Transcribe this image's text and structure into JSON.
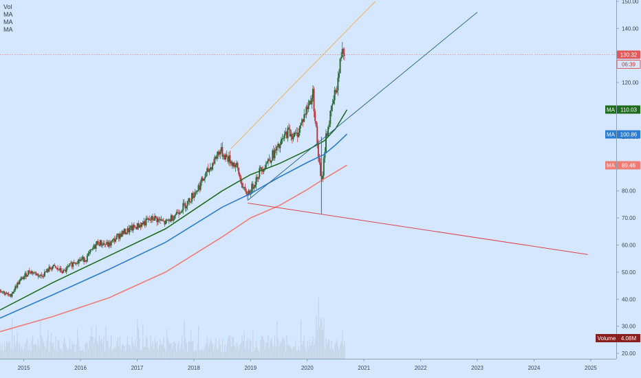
{
  "legend": {
    "vol": "Vol",
    "ma1": "MA",
    "ma2": "MA",
    "ma3": "MA"
  },
  "colors": {
    "background": "#d4e7ff",
    "up_candle": "#2d6b3a",
    "down_candle": "#b83a3a",
    "ma_green": "#1e6b1e",
    "ma_blue": "#2a7bd1",
    "ma_red": "#f07b74",
    "trend_orange": "#f0b15a",
    "trend_blue": "#2e6a8c",
    "trend_red": "#e0434a",
    "price_line": "#e88080",
    "volume_bar": "#c5d3e3"
  },
  "chart_data": {
    "type": "candlestick",
    "x_ticks": [
      "2015",
      "2016",
      "2017",
      "2018",
      "2019",
      "2020",
      "2021",
      "2022",
      "2023",
      "2024",
      "2025"
    ],
    "y_ticks": [
      "150.00",
      "140.00",
      "130.00",
      "120.00",
      "110.00",
      "100.00",
      "90.00",
      "80.00",
      "70.00",
      "60.00",
      "50.00",
      "40.00",
      "30.00",
      "20.00"
    ],
    "ylim": [
      18,
      150.5
    ],
    "xlim": [
      2014.58,
      2025.45
    ],
    "last_price": 130.32,
    "countdown": "06:39",
    "series_price": [
      [
        2014.58,
        43.5
      ],
      [
        2014.75,
        41.0
      ],
      [
        2014.9,
        46.0
      ],
      [
        2015.1,
        50.5
      ],
      [
        2015.3,
        48.5
      ],
      [
        2015.5,
        52.0
      ],
      [
        2015.7,
        50.0
      ],
      [
        2015.9,
        54.0
      ],
      [
        2016.1,
        55.0
      ],
      [
        2016.3,
        61.0
      ],
      [
        2016.5,
        60.0
      ],
      [
        2016.7,
        64.0
      ],
      [
        2016.9,
        66.0
      ],
      [
        2017.1,
        68.0
      ],
      [
        2017.3,
        70.0
      ],
      [
        2017.5,
        68.0
      ],
      [
        2017.7,
        72.0
      ],
      [
        2017.9,
        76.0
      ],
      [
        2018.1,
        82.0
      ],
      [
        2018.3,
        89.0
      ],
      [
        2018.45,
        95.0
      ],
      [
        2018.6,
        92.0
      ],
      [
        2018.75,
        89.0
      ],
      [
        2018.9,
        79.0
      ],
      [
        2019.0,
        80.0
      ],
      [
        2019.15,
        87.0
      ],
      [
        2019.3,
        91.0
      ],
      [
        2019.5,
        96.0
      ],
      [
        2019.65,
        102.0
      ],
      [
        2019.8,
        100.0
      ],
      [
        2019.95,
        108.0
      ],
      [
        2020.1,
        116.0
      ],
      [
        2020.2,
        92.0
      ],
      [
        2020.25,
        82.0
      ],
      [
        2020.33,
        100.0
      ],
      [
        2020.45,
        112.0
      ],
      [
        2020.55,
        122.0
      ],
      [
        2020.62,
        134.0
      ],
      [
        2020.67,
        130.32
      ]
    ],
    "ma": [
      {
        "name": "MA",
        "label": "110.03",
        "points": [
          [
            2014.58,
            36
          ],
          [
            2015.5,
            46
          ],
          [
            2016.5,
            56
          ],
          [
            2017.5,
            66
          ],
          [
            2018.5,
            80
          ],
          [
            2019.0,
            86
          ],
          [
            2019.5,
            90
          ],
          [
            2020.0,
            95
          ],
          [
            2020.3,
            98.5
          ],
          [
            2020.5,
            103
          ],
          [
            2020.7,
            110
          ]
        ]
      },
      {
        "name": "MA",
        "label": "100.86",
        "points": [
          [
            2014.58,
            33
          ],
          [
            2015.5,
            41.5
          ],
          [
            2016.5,
            51
          ],
          [
            2017.5,
            61
          ],
          [
            2018.5,
            74
          ],
          [
            2019.0,
            79
          ],
          [
            2019.5,
            85
          ],
          [
            2020.0,
            90.5
          ],
          [
            2020.3,
            93.5
          ],
          [
            2020.5,
            97
          ],
          [
            2020.7,
            101
          ]
        ]
      },
      {
        "name": "MA",
        "label": "89.46",
        "points": [
          [
            2014.58,
            28
          ],
          [
            2015.5,
            33.5
          ],
          [
            2016.5,
            40.5
          ],
          [
            2017.5,
            50
          ],
          [
            2018.5,
            63
          ],
          [
            2019.0,
            70
          ],
          [
            2019.5,
            74.5
          ],
          [
            2020.0,
            80.5
          ],
          [
            2020.3,
            84.5
          ],
          [
            2020.5,
            87
          ],
          [
            2020.7,
            89.5
          ]
        ]
      }
    ],
    "trendlines": [
      {
        "color_key": "trend_orange",
        "from": [
          2018.65,
          95.5
        ],
        "to": [
          2021.2,
          150
        ]
      },
      {
        "color_key": "trend_blue",
        "from": [
          2018.95,
          76.5
        ],
        "to": [
          2023.0,
          146
        ]
      },
      {
        "color_key": "trend_red",
        "from": [
          2018.95,
          75.5
        ],
        "to": [
          2024.95,
          56.5
        ]
      },
      {
        "color_key": "trend_blue",
        "from": [
          2018.95,
          76.5
        ],
        "to": [
          2018.95,
          79
        ]
      },
      {
        "color_key": "trend_blue",
        "from": [
          2020.25,
          71.5
        ],
        "to": [
          2020.25,
          100
        ]
      }
    ],
    "volume_label": "Volume",
    "volume_value": "4.08M"
  }
}
